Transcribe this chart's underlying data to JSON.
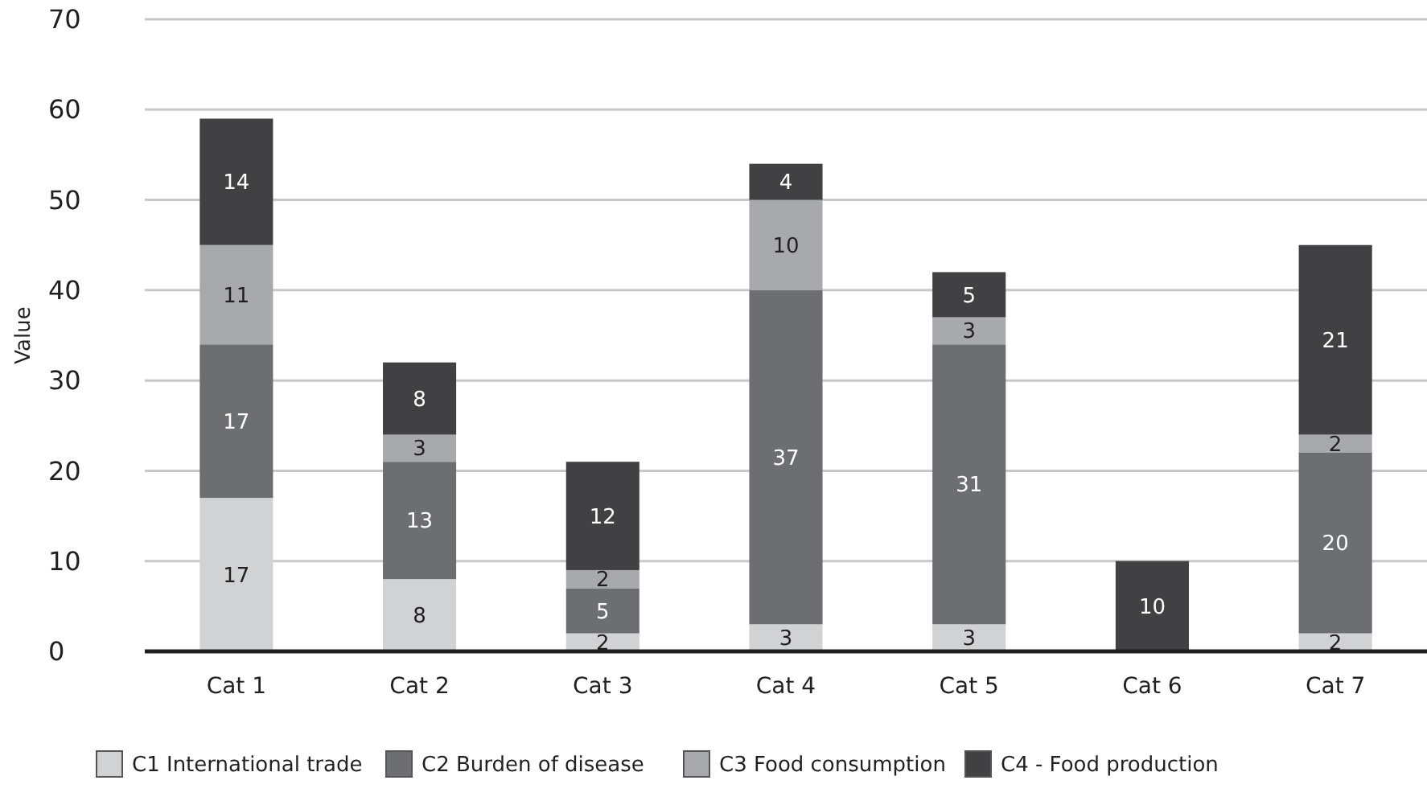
{
  "chart_data": {
    "type": "bar",
    "stacked": true,
    "ylabel": "Value",
    "categories": [
      "Cat 1",
      "Cat 2",
      "Cat 3",
      "Cat 4",
      "Cat 5",
      "Cat 6",
      "Cat 7"
    ],
    "series": [
      {
        "name": "C1 International trade",
        "color": "#d1d2d4",
        "values": [
          17,
          8,
          2,
          3,
          3,
          null,
          2
        ]
      },
      {
        "name": "C2 Burden of disease",
        "color": "#6d6e71",
        "values": [
          17,
          13,
          5,
          37,
          31,
          null,
          20
        ]
      },
      {
        "name": "C3 Food consumption",
        "color": "#a7a9ac",
        "values": [
          11,
          3,
          2,
          10,
          3,
          null,
          2
        ]
      },
      {
        "name": "C4 - Food production",
        "color": "#414042",
        "values": [
          14,
          8,
          12,
          4,
          5,
          10,
          21
        ]
      }
    ],
    "ylim": [
      0,
      70
    ],
    "yticks": [
      0,
      10,
      20,
      30,
      40,
      50,
      60,
      70
    ],
    "grid": "y",
    "legend": "bottom",
    "data_labels": true
  }
}
